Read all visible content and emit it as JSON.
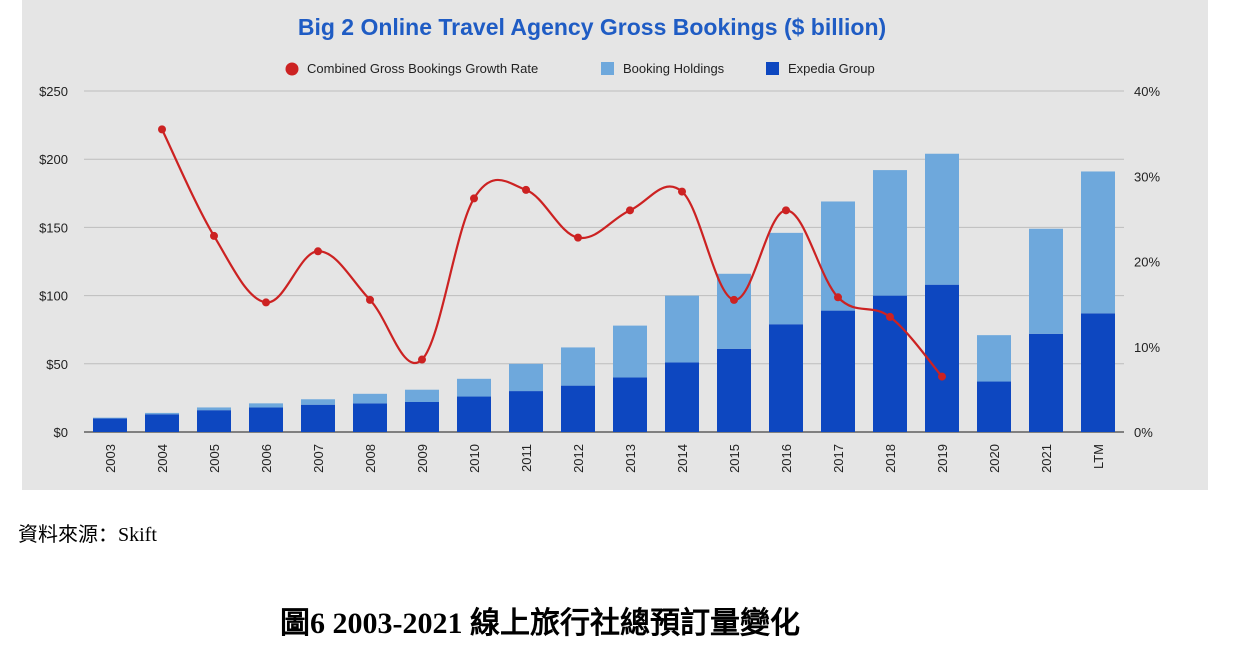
{
  "chart_data": {
    "type": "bar",
    "stacked": true,
    "title": "Big 2 Online Travel Agency Gross Bookings ($ billion)",
    "categories": [
      "2003",
      "2004",
      "2005",
      "2006",
      "2007",
      "2008",
      "2009",
      "2010",
      "2011",
      "2012",
      "2013",
      "2014",
      "2015",
      "2016",
      "2017",
      "2018",
      "2019",
      "2020",
      "2021",
      "LTM"
    ],
    "series": [
      {
        "name": "Expedia Group",
        "type": "bar",
        "axis": "left",
        "color": "#0d47c0",
        "values": [
          10,
          13,
          16,
          18,
          20,
          21,
          22,
          26,
          30,
          34,
          40,
          51,
          61,
          79,
          89,
          100,
          108,
          37,
          72,
          87
        ]
      },
      {
        "name": "Booking Holdings",
        "type": "bar",
        "axis": "left",
        "color": "#6ea8dc",
        "values": [
          0.5,
          1,
          2,
          3,
          4,
          7,
          9,
          13,
          20,
          28,
          38,
          49,
          55,
          67,
          80,
          92,
          96,
          34,
          77,
          104
        ]
      },
      {
        "name": "Combined Gross Bookings Growth Rate",
        "type": "line",
        "axis": "right",
        "color": "#cc2222",
        "values": [
          null,
          35.5,
          23,
          15.2,
          21.2,
          15.5,
          8.5,
          27.4,
          28.4,
          22.8,
          26,
          28.2,
          15.5,
          26,
          15.8,
          13.5,
          6.5,
          null,
          null,
          null
        ]
      }
    ],
    "left_axis": {
      "ticks": [
        "$0",
        "$50",
        "$100",
        "$150",
        "$200",
        "$250"
      ],
      "ylim": [
        0,
        250
      ]
    },
    "right_axis": {
      "ticks": [
        "0%",
        "10%",
        "20%",
        "30%",
        "40%"
      ],
      "ylim": [
        0,
        40
      ]
    },
    "legend": [
      "Combined Gross Bookings Growth Rate",
      "Booking Holdings",
      "Expedia Group"
    ],
    "legend_position": "top-center",
    "grid": true
  },
  "source_text": "資料來源：Skift",
  "caption": "圖6 2003-2021 線上旅行社總預訂量變化"
}
